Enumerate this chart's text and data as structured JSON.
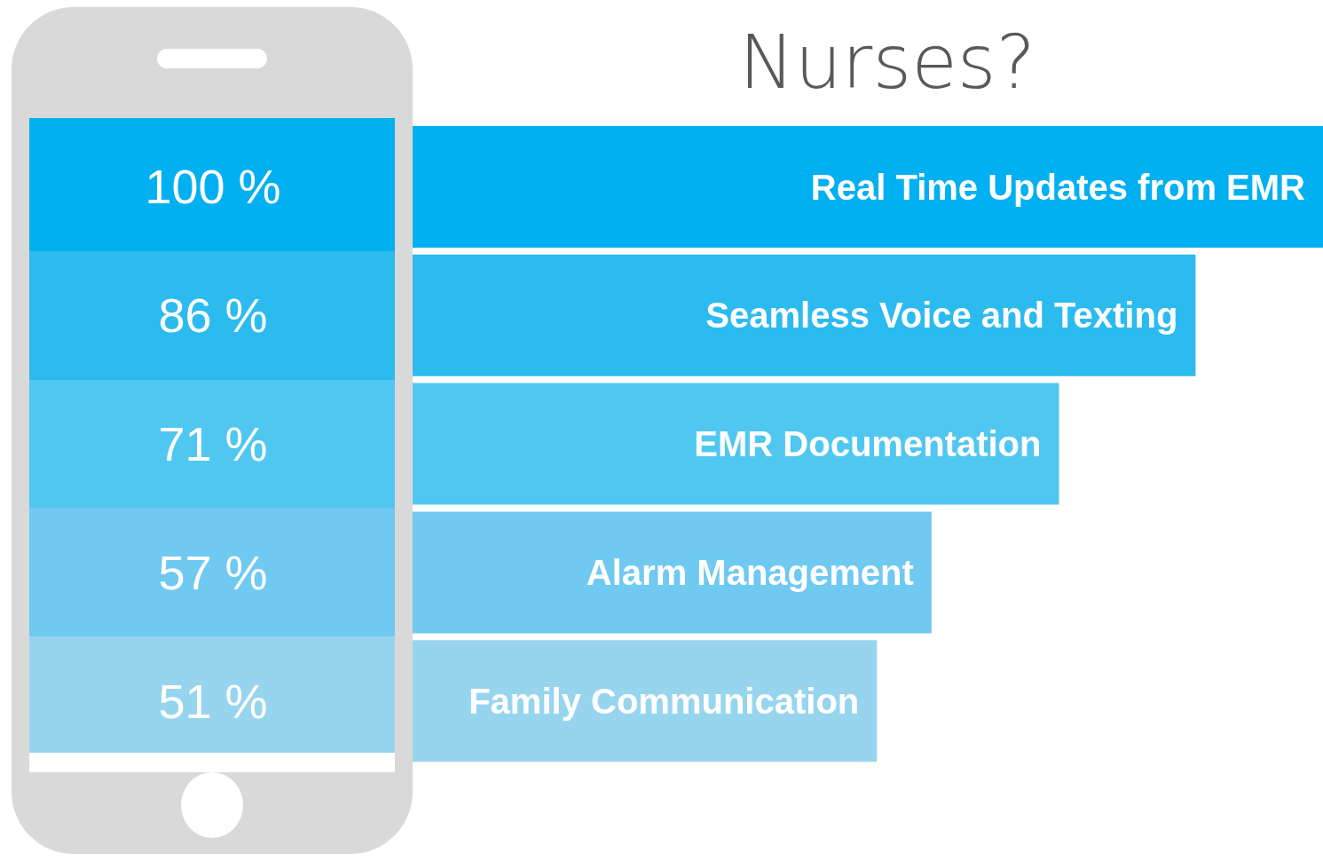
{
  "chart_data": {
    "type": "bar",
    "orientation": "horizontal",
    "title": "Nurses?",
    "categories": [
      "Real Time Updates from EMR",
      "Seamless Voice and Texting",
      "EMR Documentation",
      "Alarm Management",
      "Family Communication"
    ],
    "values": [
      100,
      86,
      71,
      57,
      51
    ],
    "value_labels": [
      "100 %",
      "86 %",
      "71 %",
      "57 %",
      "51 %"
    ],
    "colors": [
      "#00b0f0",
      "#2cbbef",
      "#50c7f0",
      "#6fc9f1",
      "#97d5ef"
    ]
  }
}
